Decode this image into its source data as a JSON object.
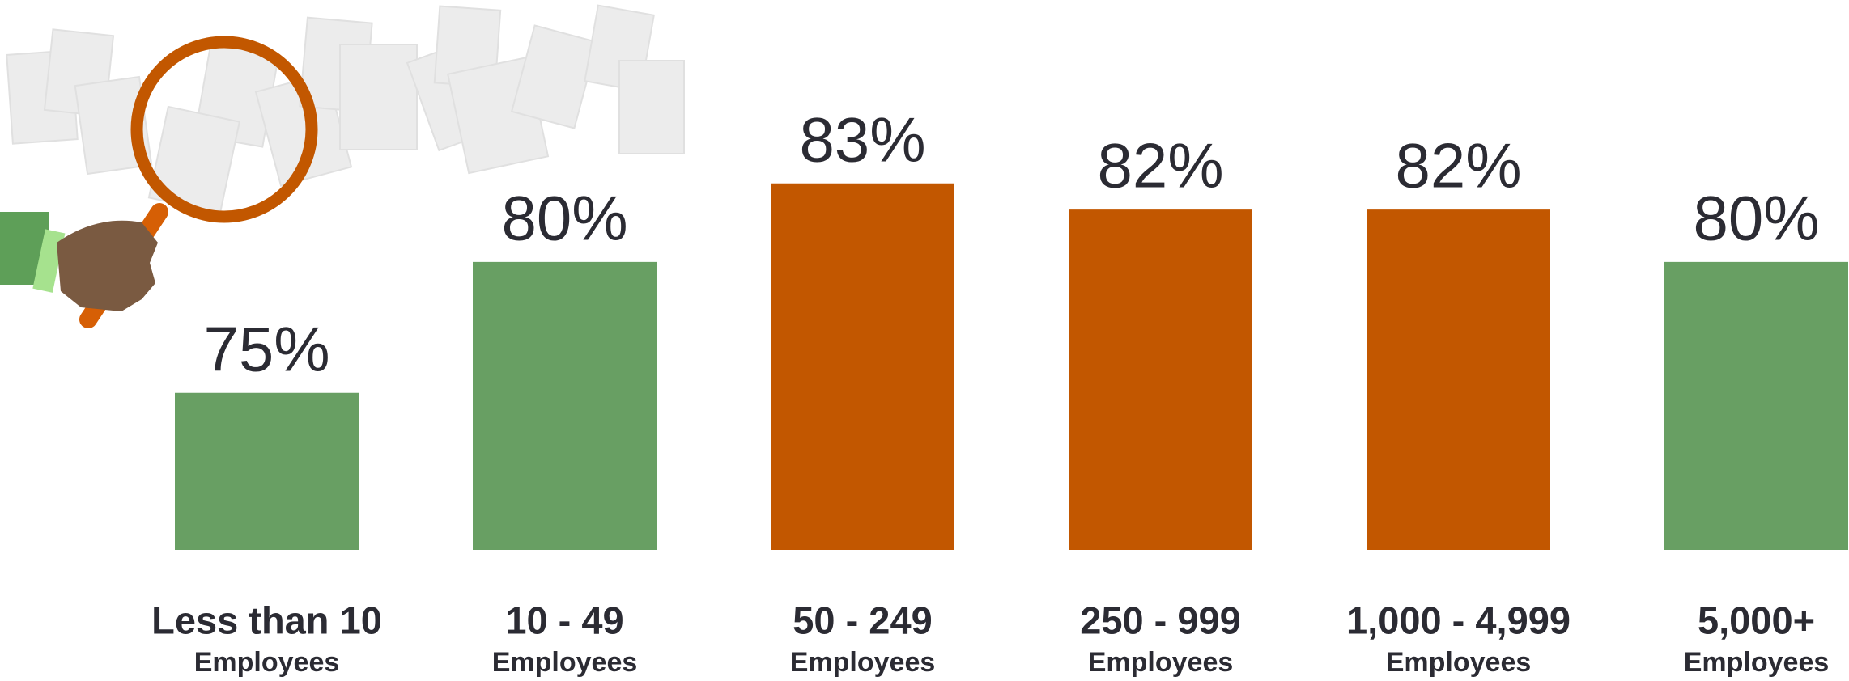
{
  "chart_data": {
    "type": "bar",
    "categories": [
      "Less than 10",
      "10 - 49",
      "50 - 249",
      "250 - 999",
      "1,000 - 4,999",
      "5,000+"
    ],
    "category_unit": "Employees",
    "values": [
      75,
      80,
      83,
      82,
      82,
      80
    ],
    "value_labels": [
      "75%",
      "80%",
      "83%",
      "82%",
      "82%",
      "80%"
    ],
    "colors": [
      "#689f63",
      "#689f63",
      "#c25700",
      "#c25700",
      "#c25700",
      "#689f63"
    ],
    "ylim": [
      69,
      85
    ]
  }
}
